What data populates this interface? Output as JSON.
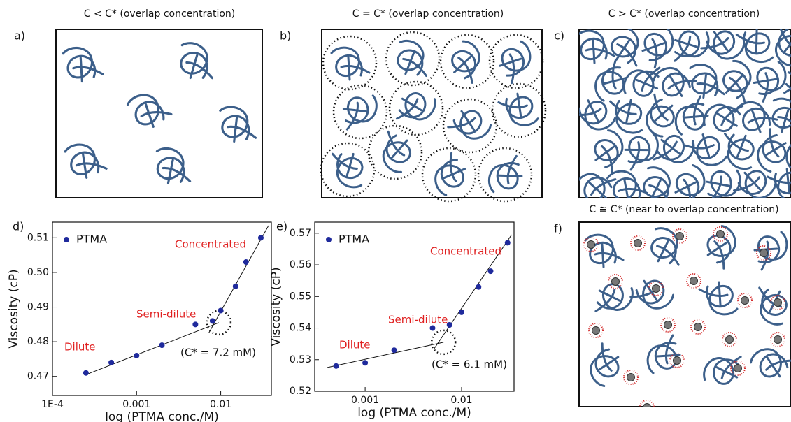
{
  "panels": [
    {
      "label": "a)",
      "title": "C < C* (overlap concentration)"
    },
    {
      "label": "b)",
      "title": "C = C* (overlap concentration)"
    },
    {
      "label": "c)",
      "title": "C > C* (overlap concentration)"
    },
    {
      "label": "f)",
      "title": "C ≅ C* (near to overlap concentration)"
    }
  ],
  "chart_data": [
    {
      "type": "scatter",
      "panel_label": "d)",
      "x_label": "log (PTMA conc./M)",
      "y_label": "Viscosity (cP)",
      "x_scale": "log",
      "xlim": [
        0.0001,
        0.04
      ],
      "ylim": [
        0.4645,
        0.5145
      ],
      "xticks": [
        {
          "value": 0.0001,
          "label": "1E-4"
        },
        0.001,
        0.01
      ],
      "yticks": [
        0.47,
        0.48,
        0.49,
        {
          "value": 0.5,
          "label": "0.50"
        },
        0.51
      ],
      "series": [
        {
          "name": "PTMA",
          "color": "#1f2a9c",
          "x": [
            0.00025,
            0.0005,
            0.001,
            0.002,
            0.005,
            0.008,
            0.01,
            0.015,
            0.02,
            0.03
          ],
          "values": [
            0.471,
            0.474,
            0.476,
            0.479,
            0.485,
            0.486,
            0.489,
            0.496,
            0.503,
            0.51
          ]
        }
      ],
      "fit_lines": [
        {
          "x": [
            0.00025,
            0.0095
          ],
          "y": [
            0.4705,
            0.4855
          ]
        },
        {
          "x": [
            0.0072,
            0.037
          ],
          "y": [
            0.4825,
            0.5135
          ]
        }
      ],
      "annotations": [
        {
          "text": "Concentrated",
          "color": "#e02020"
        },
        {
          "text": "Semi-dilute",
          "color": "#e02020"
        },
        {
          "text": "Dilute",
          "color": "#e02020"
        },
        {
          "text": "(C* = 7.2 mM)",
          "color": "#111111"
        }
      ]
    },
    {
      "type": "scatter",
      "panel_label": "e)",
      "x_label": "log (PTMA conc./M)",
      "y_label": "Viscosity (cP)",
      "x_scale": "log",
      "xlim": [
        0.0003,
        0.035
      ],
      "ylim": [
        0.52,
        0.5735
      ],
      "xticks": [
        0.001,
        0.01
      ],
      "yticks": [
        0.52,
        0.53,
        0.54,
        0.55,
        0.56,
        0.57
      ],
      "series": [
        {
          "name": "PTMA",
          "color": "#1f2a9c",
          "x": [
            0.0005,
            0.001,
            0.002,
            0.005,
            0.0075,
            0.01,
            0.015,
            0.02,
            0.03
          ],
          "values": [
            0.528,
            0.529,
            0.533,
            0.54,
            0.541,
            0.545,
            0.553,
            0.558,
            0.567
          ]
        }
      ],
      "fit_lines": [
        {
          "x": [
            0.0004,
            0.0065
          ],
          "y": [
            0.5275,
            0.5355
          ]
        },
        {
          "x": [
            0.0052,
            0.033
          ],
          "y": [
            0.5335,
            0.5695
          ]
        }
      ],
      "annotations": [
        {
          "text": "Concentrated",
          "color": "#e02020"
        },
        {
          "text": "Semi-dilute",
          "color": "#e02020"
        },
        {
          "text": "Dilute",
          "color": "#e02020"
        },
        {
          "text": "(C* = 6.1 mM)",
          "color": "#111111"
        }
      ]
    }
  ]
}
